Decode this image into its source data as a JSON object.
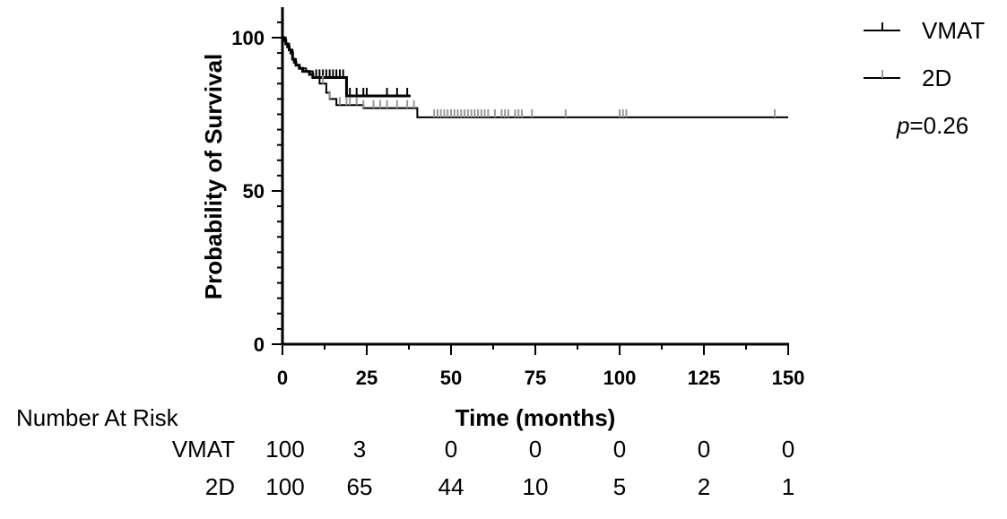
{
  "chart_data": {
    "type": "line",
    "subtype": "kaplan-meier",
    "title": "",
    "xlabel": "Time (months)",
    "ylabel": "Probability of Survival",
    "xlim": [
      0,
      150
    ],
    "ylim": [
      0,
      100
    ],
    "x_ticks": [
      0,
      25,
      50,
      75,
      100,
      125,
      150
    ],
    "y_ticks": [
      0,
      50,
      100
    ],
    "grid": false,
    "legend_position": "top-right",
    "series": [
      {
        "name": "VMAT",
        "color": "#000000",
        "steps": [
          [
            0,
            100
          ],
          [
            0.5,
            99
          ],
          [
            1,
            98
          ],
          [
            1.5,
            97
          ],
          [
            2,
            96
          ],
          [
            2.5,
            95
          ],
          [
            3,
            93
          ],
          [
            3.5,
            92
          ],
          [
            4,
            91
          ],
          [
            5,
            90
          ],
          [
            6,
            89
          ],
          [
            8,
            88
          ],
          [
            9,
            87
          ],
          [
            18,
            87
          ],
          [
            19,
            81
          ],
          [
            38,
            81
          ]
        ],
        "censor_times": [
          10,
          11,
          12,
          13,
          14,
          15,
          16,
          17,
          18,
          20,
          22,
          24,
          25,
          31,
          34,
          37
        ]
      },
      {
        "name": "2D",
        "color": "#999999",
        "steps": [
          [
            0,
            100
          ],
          [
            1,
            98
          ],
          [
            2,
            96
          ],
          [
            3,
            93
          ],
          [
            4,
            91
          ],
          [
            5,
            90
          ],
          [
            7,
            89
          ],
          [
            9,
            87
          ],
          [
            11,
            85
          ],
          [
            13,
            82
          ],
          [
            14,
            80
          ],
          [
            16,
            78
          ],
          [
            24,
            77
          ],
          [
            40,
            74
          ],
          [
            150,
            74
          ]
        ],
        "censor_times": [
          12,
          14,
          17,
          19,
          20,
          22,
          24,
          27,
          29,
          31,
          34,
          37,
          39,
          45,
          46,
          47,
          48,
          49,
          50,
          51,
          52,
          53,
          54,
          55,
          56,
          57,
          58,
          59,
          60,
          61,
          63,
          65,
          66,
          67,
          69,
          70,
          71,
          74,
          84,
          100,
          101,
          102,
          146
        ]
      }
    ],
    "annotation": "p=0.26",
    "risk_table": {
      "heading": "Number At Risk",
      "times": [
        0,
        25,
        50,
        75,
        100,
        125,
        150
      ],
      "rows": [
        {
          "label": "VMAT",
          "values": [
            "100",
            "3",
            "0",
            "0",
            "0",
            "0",
            "0"
          ]
        },
        {
          "label": "2D",
          "values": [
            "100",
            "65",
            "44",
            "10",
            "5",
            "2",
            "1"
          ]
        }
      ]
    }
  },
  "legend": {
    "vmat": "VMAT",
    "twod": "2D"
  },
  "pvalue": {
    "italic_p": "p",
    "rest": "=0.26"
  }
}
